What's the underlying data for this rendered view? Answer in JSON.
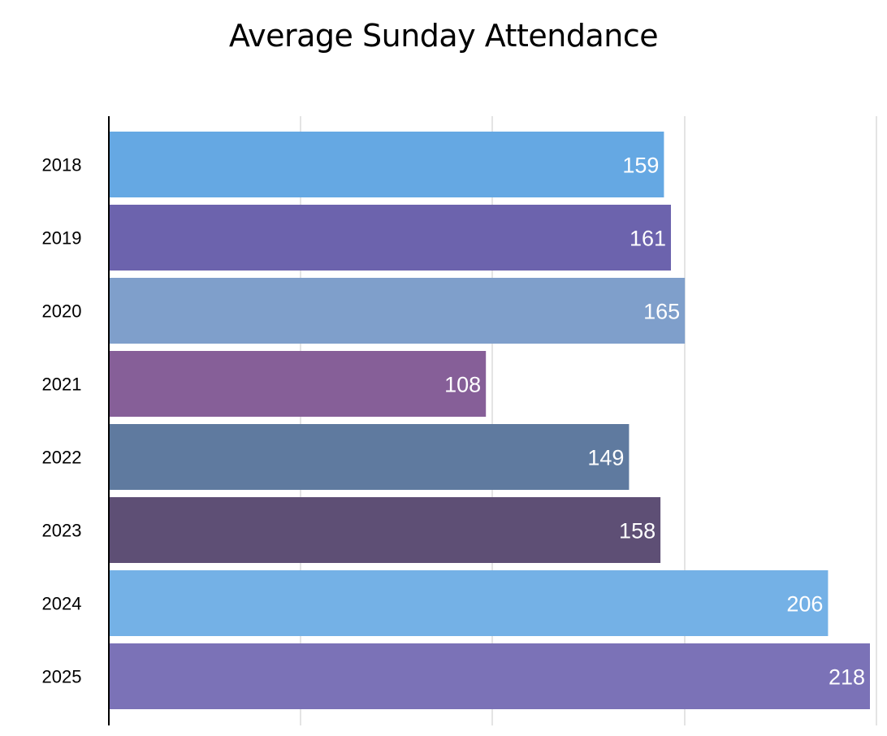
{
  "chart_data": {
    "type": "bar",
    "orientation": "horizontal",
    "title": "Average Sunday Attendance",
    "categories": [
      "2018",
      "2019",
      "2020",
      "2021",
      "2022",
      "2023",
      "2024",
      "2025"
    ],
    "values": [
      159,
      161,
      165,
      108,
      149,
      158,
      206,
      218
    ],
    "xlim": [
      0,
      218
    ],
    "grid": true,
    "data_labels": true,
    "bar_colors": [
      "#65A8E3",
      "#6C63AD",
      "#7F9FCB",
      "#865F98",
      "#5F7A9F",
      "#5E4F75",
      "#74B1E6",
      "#7B72B7"
    ]
  }
}
